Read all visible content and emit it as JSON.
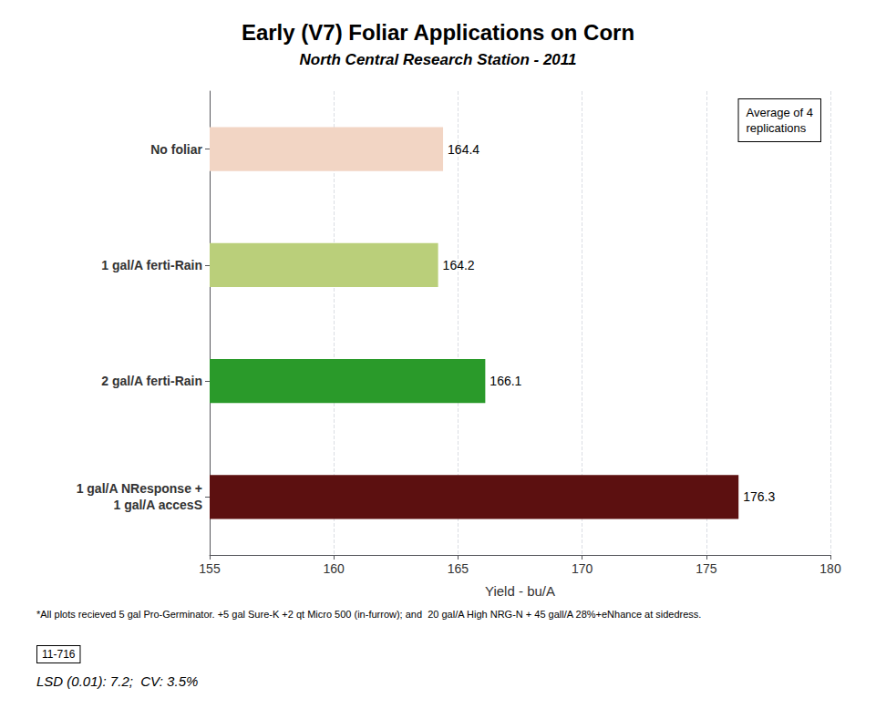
{
  "chart_data": {
    "type": "bar",
    "orientation": "horizontal",
    "title": "Early (V7) Foliar Applications on Corn",
    "subtitle": "North Central Research Station - 2011",
    "categories": [
      "No foliar",
      "1 gal/A ferti-Rain",
      "2 gal/A ferti-Rain",
      "1 gal/A NResponse +\n1 gal/A accesS"
    ],
    "values": [
      164.4,
      164.2,
      166.1,
      176.3
    ],
    "colors": [
      "#F2D5C4",
      "#BACF7A",
      "#2A9A2A",
      "#5C1010"
    ],
    "xlabel": "Yield - bu/A",
    "xlim": [
      155,
      180
    ],
    "xticks": [
      155,
      160,
      165,
      170,
      175,
      180
    ],
    "data_labels": true,
    "grid": true,
    "annotations": [
      "Average of 4\nreplications",
      "*All plots recieved 5 gal Pro-Germinator. +5 gal Sure-K +2 qt Micro 500 (in-furrow); and  20 gal/A High NRG-N + 45 gall/A 28%+eNhance at sidedress.",
      "LSD (0.01): 7.2;  CV: 3.5%",
      "11-716"
    ]
  }
}
